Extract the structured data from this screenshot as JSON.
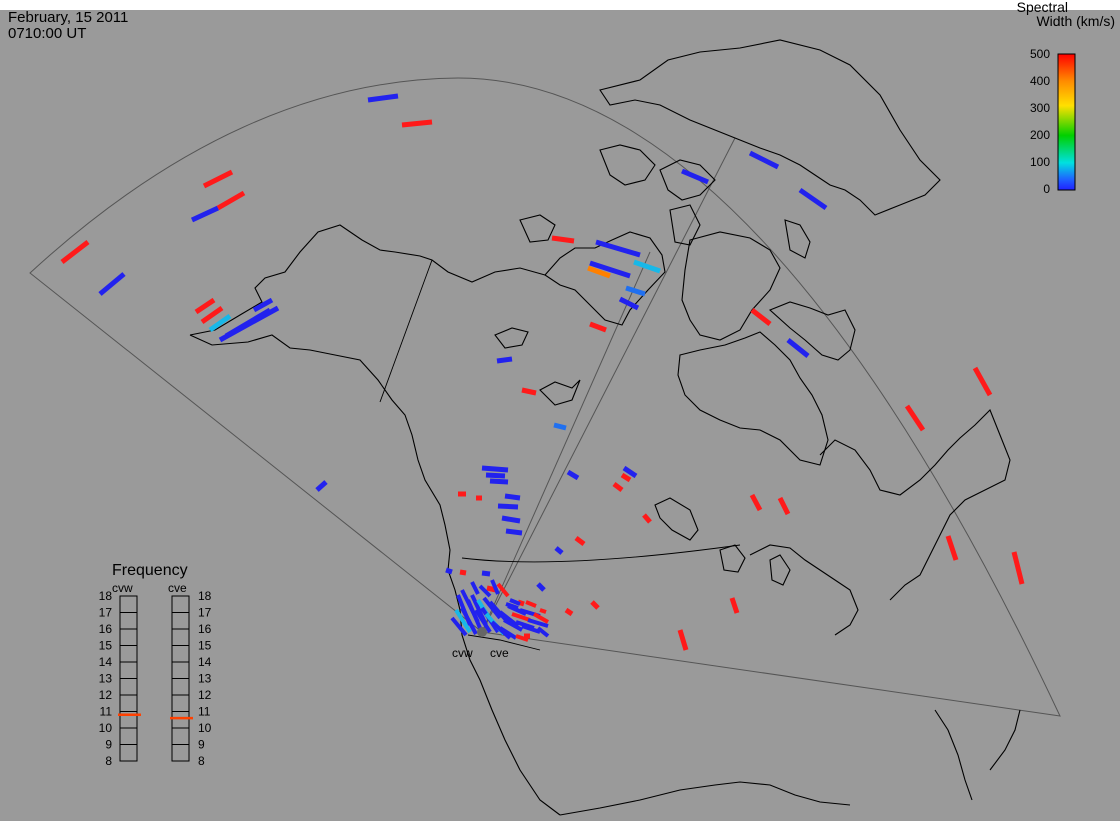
{
  "header": {
    "date": "February, 15 2011",
    "time": "0710:00 UT"
  },
  "colorbar": {
    "title_line1": "Spectral",
    "title_line2": "Width (km/s)",
    "ticks": [
      "500",
      "400",
      "300",
      "200",
      "100",
      "0"
    ],
    "min": 0,
    "max": 500,
    "colors": [
      "#ff0000",
      "#ff8c00",
      "#ffe000",
      "#00d000",
      "#00e0e0",
      "#1e64ff",
      "#2020ff"
    ]
  },
  "frequency_panel": {
    "title": "Frequency",
    "radars": [
      {
        "code": "cvw",
        "value": 10.8
      },
      {
        "code": "cve",
        "value": 10.6
      }
    ],
    "ticks": [
      "18",
      "17",
      "16",
      "15",
      "14",
      "13",
      "12",
      "11",
      "10",
      "9",
      "8"
    ],
    "indicator_color": "#ff4000"
  },
  "radar_labels": [
    "cvw",
    "cve"
  ],
  "colors": {
    "background": "#9a9a9a",
    "coast": "#000000",
    "fov": "#555555"
  }
}
